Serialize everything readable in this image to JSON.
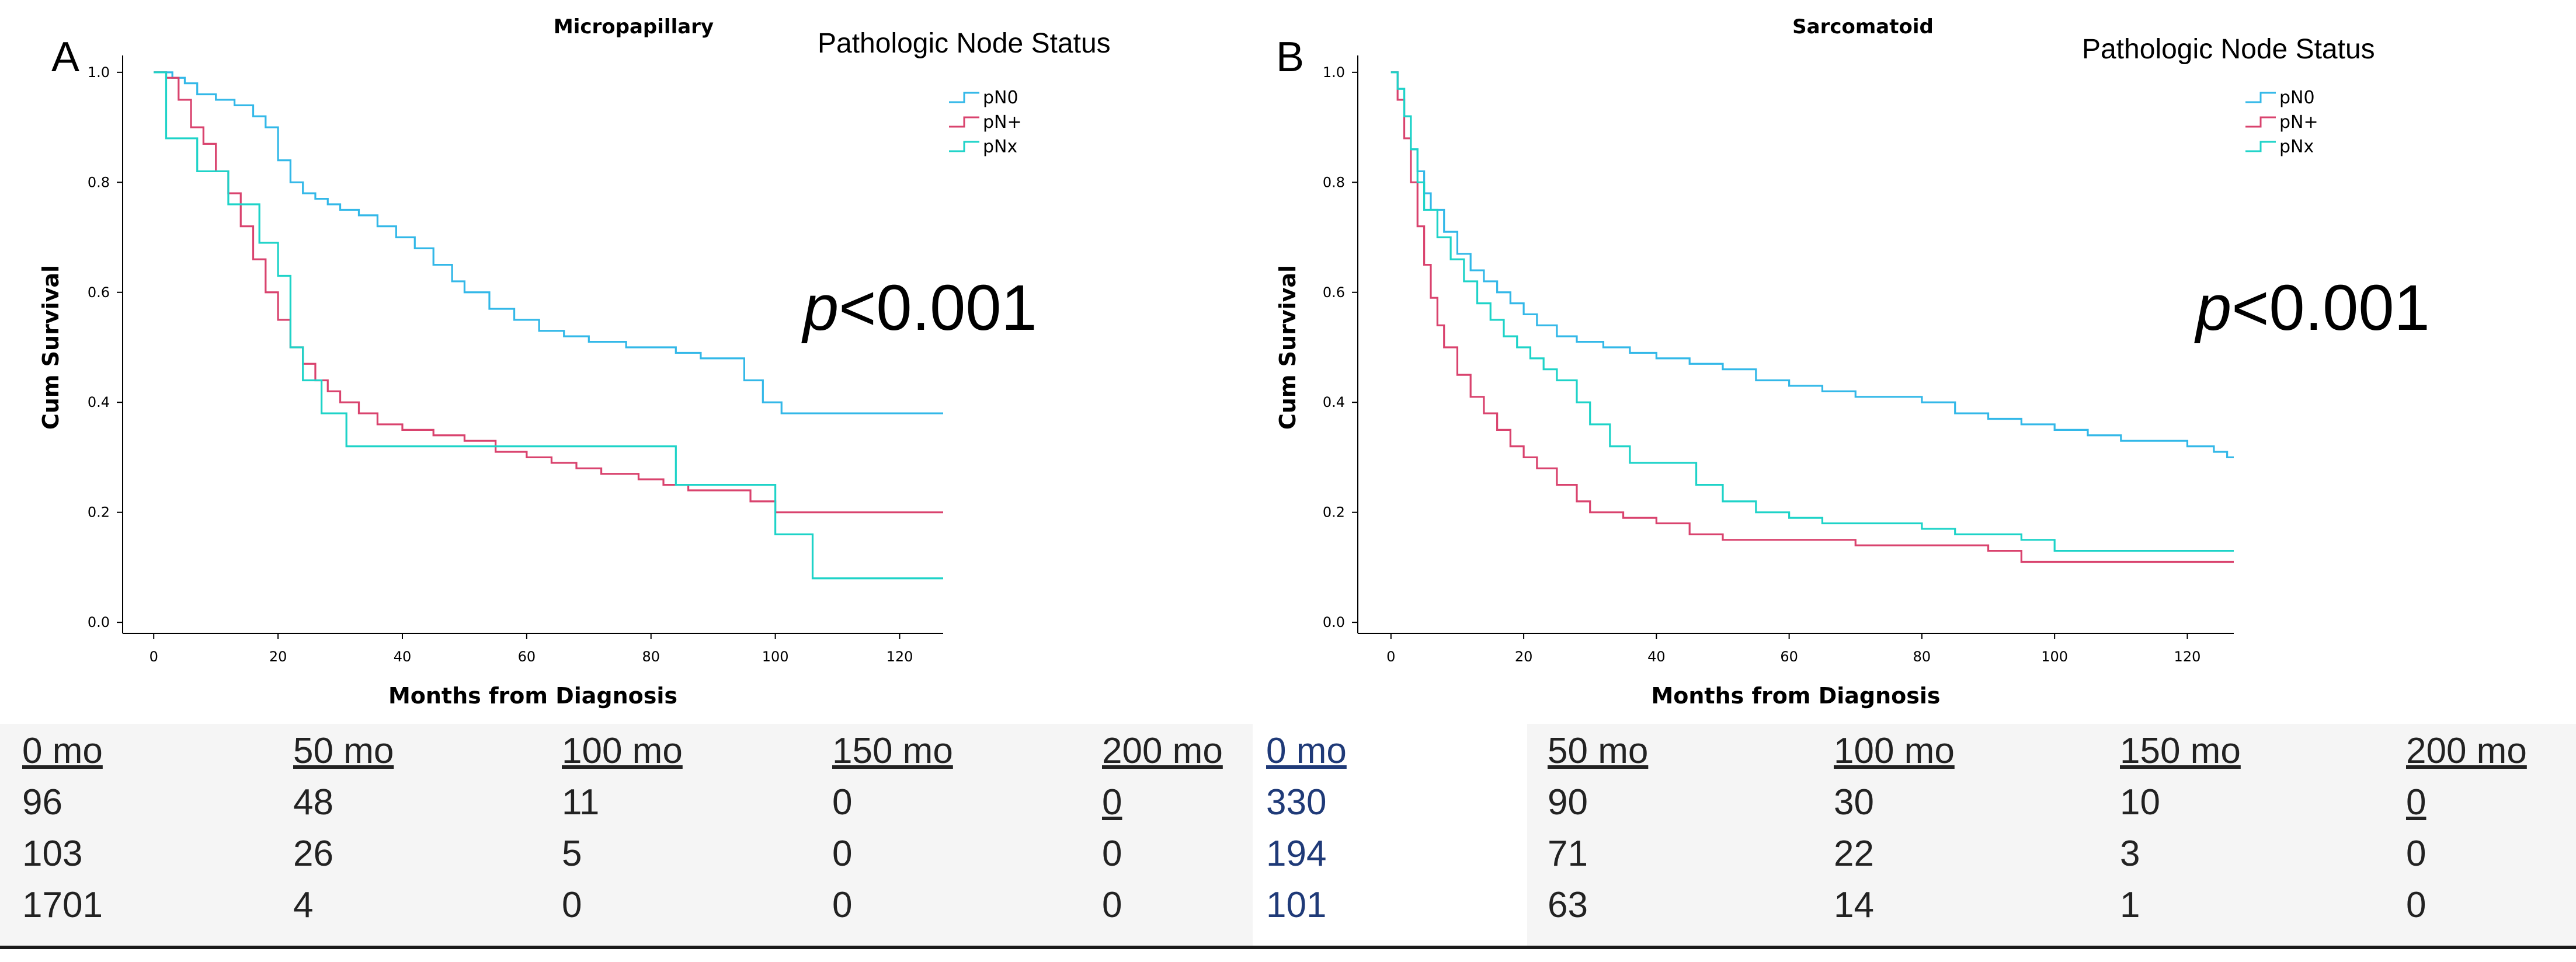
{
  "chart_data": [
    {
      "type": "line",
      "panel": "A",
      "title": "Micropapillary",
      "legend_title": "Pathologic Node Status",
      "xlabel": "Months from Diagnosis",
      "ylabel": "Cum Survival",
      "xlim": [
        -5,
        127
      ],
      "ylim": [
        -0.02,
        1.02
      ],
      "xticks": [
        0,
        20,
        40,
        60,
        80,
        100,
        120
      ],
      "yticks": [
        0.0,
        0.2,
        0.4,
        0.6,
        0.8,
        1.0
      ],
      "p_value": "<0.001",
      "p_italic": "p",
      "legend": [
        "pN0",
        "pN+",
        "pNx"
      ],
      "series": [
        {
          "name": "pN0",
          "color": "#33b8e8",
          "points": [
            [
              0,
              1.0
            ],
            [
              2,
              1.0
            ],
            [
              3,
              0.99
            ],
            [
              5,
              0.98
            ],
            [
              7,
              0.96
            ],
            [
              10,
              0.95
            ],
            [
              13,
              0.94
            ],
            [
              16,
              0.92
            ],
            [
              18,
              0.9
            ],
            [
              20,
              0.84
            ],
            [
              22,
              0.8
            ],
            [
              24,
              0.78
            ],
            [
              26,
              0.77
            ],
            [
              28,
              0.76
            ],
            [
              30,
              0.75
            ],
            [
              33,
              0.74
            ],
            [
              36,
              0.72
            ],
            [
              39,
              0.7
            ],
            [
              42,
              0.68
            ],
            [
              45,
              0.65
            ],
            [
              48,
              0.62
            ],
            [
              50,
              0.6
            ],
            [
              54,
              0.57
            ],
            [
              58,
              0.55
            ],
            [
              62,
              0.53
            ],
            [
              66,
              0.52
            ],
            [
              70,
              0.51
            ],
            [
              76,
              0.5
            ],
            [
              80,
              0.5
            ],
            [
              84,
              0.49
            ],
            [
              88,
              0.48
            ],
            [
              92,
              0.48
            ],
            [
              95,
              0.44
            ],
            [
              98,
              0.4
            ],
            [
              101,
              0.38
            ],
            [
              127,
              0.38
            ]
          ]
        },
        {
          "name": "pN+",
          "color": "#d9436e",
          "points": [
            [
              0,
              1.0
            ],
            [
              2,
              0.99
            ],
            [
              4,
              0.95
            ],
            [
              6,
              0.9
            ],
            [
              8,
              0.87
            ],
            [
              10,
              0.82
            ],
            [
              12,
              0.78
            ],
            [
              14,
              0.72
            ],
            [
              16,
              0.66
            ],
            [
              18,
              0.6
            ],
            [
              20,
              0.55
            ],
            [
              22,
              0.5
            ],
            [
              24,
              0.47
            ],
            [
              26,
              0.44
            ],
            [
              28,
              0.42
            ],
            [
              30,
              0.4
            ],
            [
              33,
              0.38
            ],
            [
              36,
              0.36
            ],
            [
              40,
              0.35
            ],
            [
              45,
              0.34
            ],
            [
              50,
              0.33
            ],
            [
              55,
              0.31
            ],
            [
              60,
              0.3
            ],
            [
              64,
              0.29
            ],
            [
              68,
              0.28
            ],
            [
              72,
              0.27
            ],
            [
              78,
              0.26
            ],
            [
              82,
              0.25
            ],
            [
              86,
              0.24
            ],
            [
              90,
              0.24
            ],
            [
              96,
              0.22
            ],
            [
              100,
              0.2
            ],
            [
              104,
              0.2
            ],
            [
              127,
              0.2
            ]
          ]
        },
        {
          "name": "pNx",
          "color": "#1ed3c8",
          "points": [
            [
              0,
              1.0
            ],
            [
              2,
              0.88
            ],
            [
              7,
              0.82
            ],
            [
              12,
              0.76
            ],
            [
              17,
              0.69
            ],
            [
              20,
              0.63
            ],
            [
              22,
              0.5
            ],
            [
              24,
              0.44
            ],
            [
              27,
              0.38
            ],
            [
              31,
              0.32
            ],
            [
              84,
              0.32
            ],
            [
              84,
              0.25
            ],
            [
              96,
              0.25
            ],
            [
              100,
              0.16
            ],
            [
              106,
              0.08
            ],
            [
              127,
              0.08
            ]
          ]
        }
      ]
    },
    {
      "type": "line",
      "panel": "B",
      "title": "Sarcomatoid",
      "legend_title": "Pathologic Node Status",
      "xlabel": "Months from Diagnosis",
      "ylabel": "Cum Survival",
      "xlim": [
        -5,
        127
      ],
      "ylim": [
        -0.02,
        1.02
      ],
      "xticks": [
        0,
        20,
        40,
        60,
        80,
        100,
        120
      ],
      "yticks": [
        0.0,
        0.2,
        0.4,
        0.6,
        0.8,
        1.0
      ],
      "p_value": "<0.001",
      "p_italic": "p",
      "legend": [
        "pN0",
        "pN+",
        "pNx"
      ],
      "series": [
        {
          "name": "pN0",
          "color": "#33b8e8",
          "points": [
            [
              0,
              1.0
            ],
            [
              1,
              0.97
            ],
            [
              2,
              0.92
            ],
            [
              3,
              0.86
            ],
            [
              4,
              0.82
            ],
            [
              5,
              0.78
            ],
            [
              6,
              0.75
            ],
            [
              8,
              0.71
            ],
            [
              10,
              0.67
            ],
            [
              12,
              0.64
            ],
            [
              14,
              0.62
            ],
            [
              16,
              0.6
            ],
            [
              18,
              0.58
            ],
            [
              20,
              0.56
            ],
            [
              22,
              0.54
            ],
            [
              25,
              0.52
            ],
            [
              28,
              0.51
            ],
            [
              32,
              0.5
            ],
            [
              36,
              0.49
            ],
            [
              40,
              0.48
            ],
            [
              45,
              0.47
            ],
            [
              50,
              0.46
            ],
            [
              55,
              0.44
            ],
            [
              60,
              0.43
            ],
            [
              65,
              0.42
            ],
            [
              70,
              0.41
            ],
            [
              80,
              0.4
            ],
            [
              85,
              0.38
            ],
            [
              90,
              0.37
            ],
            [
              95,
              0.36
            ],
            [
              100,
              0.35
            ],
            [
              105,
              0.34
            ],
            [
              110,
              0.33
            ],
            [
              115,
              0.33
            ],
            [
              120,
              0.32
            ],
            [
              124,
              0.31
            ],
            [
              126,
              0.3
            ],
            [
              127,
              0.3
            ]
          ]
        },
        {
          "name": "pN+",
          "color": "#d9436e",
          "points": [
            [
              0,
              1.0
            ],
            [
              1,
              0.95
            ],
            [
              2,
              0.88
            ],
            [
              3,
              0.8
            ],
            [
              4,
              0.72
            ],
            [
              5,
              0.65
            ],
            [
              6,
              0.59
            ],
            [
              7,
              0.54
            ],
            [
              8,
              0.5
            ],
            [
              10,
              0.45
            ],
            [
              12,
              0.41
            ],
            [
              14,
              0.38
            ],
            [
              16,
              0.35
            ],
            [
              18,
              0.32
            ],
            [
              20,
              0.3
            ],
            [
              22,
              0.28
            ],
            [
              25,
              0.25
            ],
            [
              28,
              0.22
            ],
            [
              30,
              0.2
            ],
            [
              35,
              0.19
            ],
            [
              40,
              0.18
            ],
            [
              45,
              0.16
            ],
            [
              50,
              0.15
            ],
            [
              60,
              0.15
            ],
            [
              70,
              0.14
            ],
            [
              80,
              0.14
            ],
            [
              90,
              0.13
            ],
            [
              95,
              0.11
            ],
            [
              127,
              0.11
            ]
          ]
        },
        {
          "name": "pNx",
          "color": "#1ed3c8",
          "points": [
            [
              0,
              1.0
            ],
            [
              1,
              0.97
            ],
            [
              2,
              0.92
            ],
            [
              3,
              0.86
            ],
            [
              4,
              0.8
            ],
            [
              5,
              0.75
            ],
            [
              7,
              0.7
            ],
            [
              9,
              0.66
            ],
            [
              11,
              0.62
            ],
            [
              13,
              0.58
            ],
            [
              15,
              0.55
            ],
            [
              17,
              0.52
            ],
            [
              19,
              0.5
            ],
            [
              21,
              0.48
            ],
            [
              23,
              0.46
            ],
            [
              25,
              0.44
            ],
            [
              28,
              0.4
            ],
            [
              30,
              0.36
            ],
            [
              33,
              0.32
            ],
            [
              36,
              0.29
            ],
            [
              40,
              0.29
            ],
            [
              46,
              0.25
            ],
            [
              50,
              0.22
            ],
            [
              55,
              0.2
            ],
            [
              60,
              0.19
            ],
            [
              65,
              0.18
            ],
            [
              75,
              0.18
            ],
            [
              80,
              0.17
            ],
            [
              85,
              0.16
            ],
            [
              95,
              0.15
            ],
            [
              100,
              0.13
            ],
            [
              127,
              0.13
            ]
          ]
        }
      ]
    }
  ],
  "risk_table": {
    "left": {
      "headers": [
        "0 mo",
        "50 mo",
        "100 mo",
        "150 mo",
        "200 mo"
      ],
      "rows": [
        [
          "96",
          "48",
          "11",
          "0",
          "0"
        ],
        [
          "103",
          "26",
          "5",
          "0",
          "0"
        ],
        [
          "1701",
          "4",
          "0",
          "0",
          "0"
        ]
      ]
    },
    "right": {
      "headers": [
        "0 mo",
        "50 mo",
        "100 mo",
        "150 mo",
        "200 mo"
      ],
      "rows": [
        [
          "330",
          "90",
          "30",
          "10",
          "0"
        ],
        [
          "194",
          "71",
          "22",
          "3",
          "0"
        ],
        [
          "101",
          "63",
          "14",
          "1",
          "0"
        ]
      ]
    }
  }
}
